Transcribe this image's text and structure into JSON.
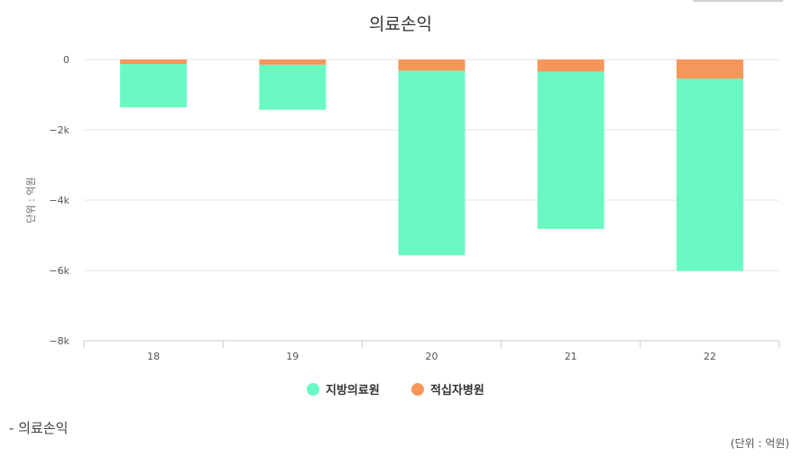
{
  "chart_data": {
    "type": "bar",
    "stacked": true,
    "title": "의료손익",
    "ylabel": "단위 : 억원",
    "xlabel": "",
    "categories": [
      "18",
      "19",
      "20",
      "21",
      "22"
    ],
    "series": [
      {
        "name": "적십자병원",
        "color": "#f7965a",
        "values": [
          -130,
          -150,
          -320,
          -350,
          -540
        ]
      },
      {
        "name": "지방의료원",
        "color": "#6bf9c3",
        "values": [
          -1230,
          -1280,
          -5250,
          -4470,
          -5480
        ]
      }
    ],
    "ylim": [
      -8000,
      0
    ],
    "yticks": [
      0,
      -2000,
      -4000,
      -6000,
      -8000
    ],
    "ytick_labels": [
      "0",
      "−2k",
      "−4k",
      "−6k",
      "−8k"
    ],
    "legend_order": [
      "지방의료원",
      "적십자병원"
    ],
    "legend_position": "bottom-center",
    "grid": true
  },
  "footer": {
    "title": "- 의료손익",
    "unit": "(단위 : 억원)"
  }
}
